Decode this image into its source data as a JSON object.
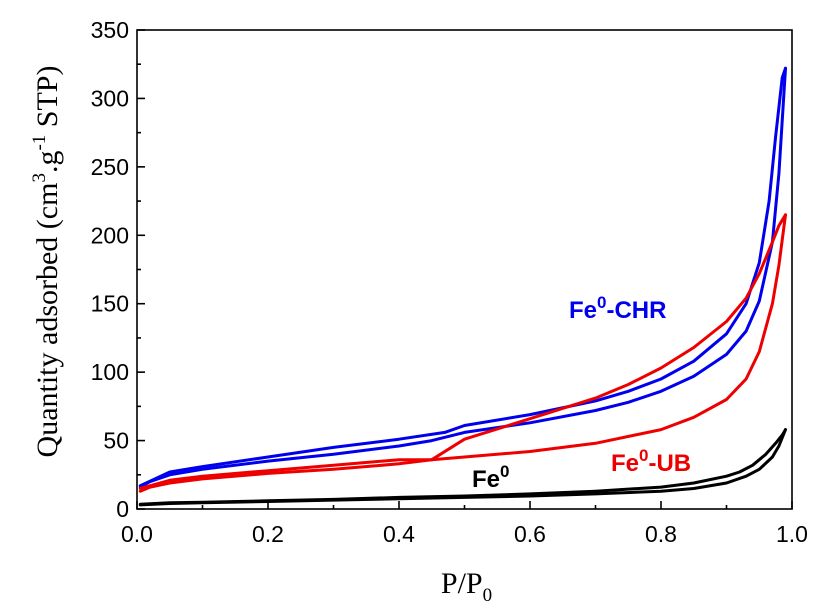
{
  "chart_data": {
    "type": "line",
    "xlabel": "P/P0",
    "xlabel_main": "P/P",
    "xlabel_sub": "0",
    "ylabel": "Quantity adsorbed (cm3.g-1 STP)",
    "ylabel_parts": [
      "Quantity adsorbed (cm",
      "3",
      ".g",
      "-1",
      " STP)"
    ],
    "xlim": [
      0.0,
      1.0
    ],
    "ylim": [
      0,
      350
    ],
    "xticks": [
      0.0,
      0.2,
      0.4,
      0.6,
      0.8,
      1.0
    ],
    "xtick_labels": [
      "0.0",
      "0.2",
      "0.4",
      "0.6",
      "0.8",
      "1.0"
    ],
    "yticks": [
      0,
      50,
      100,
      150,
      200,
      250,
      300,
      350
    ],
    "ytick_labels": [
      "0",
      "50",
      "100",
      "150",
      "200",
      "250",
      "300",
      "350"
    ],
    "grid": false,
    "series": [
      {
        "name": "Fe0-CHR",
        "label_main": "Fe",
        "label_sup": "0",
        "label_suffix": "-CHR",
        "color": "#0000ee",
        "adsorption": [
          [
            0.005,
            16
          ],
          [
            0.02,
            20
          ],
          [
            0.05,
            25
          ],
          [
            0.1,
            29
          ],
          [
            0.2,
            35
          ],
          [
            0.3,
            40
          ],
          [
            0.4,
            46
          ],
          [
            0.45,
            50
          ],
          [
            0.5,
            56
          ],
          [
            0.6,
            63
          ],
          [
            0.7,
            72
          ],
          [
            0.75,
            78
          ],
          [
            0.8,
            86
          ],
          [
            0.85,
            97
          ],
          [
            0.9,
            113
          ],
          [
            0.93,
            130
          ],
          [
            0.95,
            152
          ],
          [
            0.97,
            195
          ],
          [
            0.98,
            245
          ],
          [
            0.99,
            322
          ]
        ],
        "desorption": [
          [
            0.99,
            322
          ],
          [
            0.985,
            315
          ],
          [
            0.975,
            272
          ],
          [
            0.965,
            225
          ],
          [
            0.95,
            180
          ],
          [
            0.93,
            150
          ],
          [
            0.9,
            128
          ],
          [
            0.85,
            108
          ],
          [
            0.8,
            95
          ],
          [
            0.75,
            86
          ],
          [
            0.7,
            79
          ],
          [
            0.6,
            69
          ],
          [
            0.5,
            61
          ],
          [
            0.47,
            56
          ],
          [
            0.4,
            51
          ],
          [
            0.3,
            45
          ],
          [
            0.2,
            38
          ],
          [
            0.1,
            31
          ],
          [
            0.05,
            27
          ],
          [
            0.005,
            17
          ]
        ]
      },
      {
        "name": "Fe0-UB",
        "label_main": "Fe",
        "label_sup": "0",
        "label_suffix": "-UB",
        "color": "#ee0000",
        "adsorption": [
          [
            0.005,
            13
          ],
          [
            0.02,
            16
          ],
          [
            0.05,
            19
          ],
          [
            0.1,
            22
          ],
          [
            0.2,
            26
          ],
          [
            0.3,
            29
          ],
          [
            0.4,
            33
          ],
          [
            0.45,
            36
          ],
          [
            0.5,
            38
          ],
          [
            0.6,
            42
          ],
          [
            0.7,
            48
          ],
          [
            0.8,
            58
          ],
          [
            0.85,
            67
          ],
          [
            0.9,
            80
          ],
          [
            0.93,
            95
          ],
          [
            0.95,
            115
          ],
          [
            0.97,
            150
          ],
          [
            0.98,
            178
          ],
          [
            0.99,
            215
          ]
        ],
        "desorption": [
          [
            0.99,
            215
          ],
          [
            0.98,
            207
          ],
          [
            0.97,
            195
          ],
          [
            0.95,
            172
          ],
          [
            0.93,
            154
          ],
          [
            0.9,
            137
          ],
          [
            0.85,
            118
          ],
          [
            0.8,
            103
          ],
          [
            0.75,
            91
          ],
          [
            0.7,
            81
          ],
          [
            0.6,
            66
          ],
          [
            0.5,
            51
          ],
          [
            0.45,
            36
          ],
          [
            0.4,
            36
          ],
          [
            0.3,
            32
          ],
          [
            0.2,
            28
          ],
          [
            0.1,
            24
          ],
          [
            0.05,
            21
          ],
          [
            0.005,
            15
          ]
        ]
      },
      {
        "name": "Fe0",
        "label_main": "Fe",
        "label_sup": "0",
        "label_suffix": "",
        "color": "#000000",
        "adsorption": [
          [
            0.005,
            3
          ],
          [
            0.05,
            4
          ],
          [
            0.1,
            4.5
          ],
          [
            0.2,
            5.5
          ],
          [
            0.3,
            6.5
          ],
          [
            0.4,
            7.5
          ],
          [
            0.5,
            8.5
          ],
          [
            0.6,
            9.5
          ],
          [
            0.7,
            11
          ],
          [
            0.8,
            13
          ],
          [
            0.85,
            15
          ],
          [
            0.9,
            19
          ],
          [
            0.93,
            24
          ],
          [
            0.95,
            29
          ],
          [
            0.97,
            38
          ],
          [
            0.98,
            46
          ],
          [
            0.99,
            58
          ]
        ],
        "desorption": [
          [
            0.99,
            58
          ],
          [
            0.985,
            54
          ],
          [
            0.975,
            48
          ],
          [
            0.96,
            40
          ],
          [
            0.94,
            32
          ],
          [
            0.92,
            27
          ],
          [
            0.9,
            24
          ],
          [
            0.85,
            19
          ],
          [
            0.8,
            16
          ],
          [
            0.7,
            13
          ],
          [
            0.6,
            11
          ],
          [
            0.5,
            9.5
          ],
          [
            0.4,
            8.5
          ],
          [
            0.3,
            7
          ],
          [
            0.2,
            6
          ],
          [
            0.1,
            5
          ],
          [
            0.05,
            4.5
          ],
          [
            0.005,
            3.5
          ]
        ]
      }
    ]
  }
}
